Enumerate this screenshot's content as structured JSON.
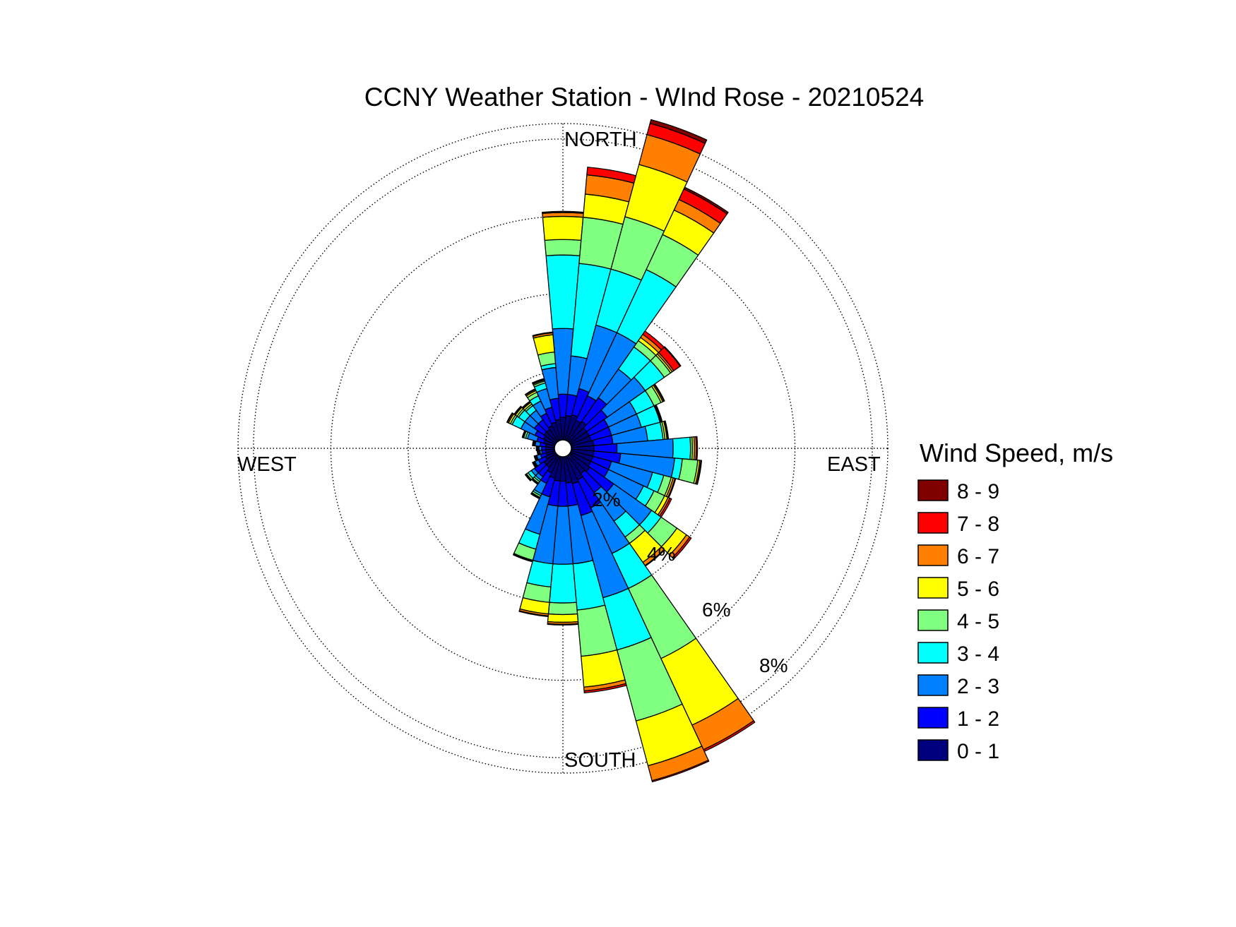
{
  "chart_data": {
    "type": "wind-rose",
    "title": "CCNY Weather Station - WInd Rose - 20210524",
    "direction_labels": {
      "north": "NORTH",
      "east": "EAST",
      "south": "SOUTH",
      "west": "WEST"
    },
    "rings": [
      {
        "value": 2,
        "label": "2%"
      },
      {
        "value": 4,
        "label": "4%"
      },
      {
        "value": 6,
        "label": "6%"
      },
      {
        "value": 8,
        "label": "8%"
      }
    ],
    "rmax": 8.4,
    "sector_width_deg": 10,
    "legend_title": "Wind Speed, m/s",
    "bins": [
      {
        "label": "0 - 1",
        "color": "#00007f"
      },
      {
        "label": "1 - 2",
        "color": "#0000ff"
      },
      {
        "label": "2 - 3",
        "color": "#0080ff"
      },
      {
        "label": "3 - 4",
        "color": "#00ffff"
      },
      {
        "label": "4 - 5",
        "color": "#80ff80"
      },
      {
        "label": "5 - 6",
        "color": "#ffff00"
      },
      {
        "label": "6 - 7",
        "color": "#ff8000"
      },
      {
        "label": "7 - 8",
        "color": "#ff0000"
      },
      {
        "label": "8 - 9",
        "color": "#800000"
      }
    ],
    "sectors": [
      {
        "dir": 0,
        "cum": [
          0.8,
          1.4,
          3.1,
          5.0,
          5.4,
          6.0,
          6.1,
          6.12,
          6.13
        ]
      },
      {
        "dir": 10,
        "cum": [
          0.85,
          1.4,
          2.4,
          4.8,
          6.0,
          6.6,
          7.1,
          7.3,
          7.3
        ]
      },
      {
        "dir": 20,
        "cum": [
          0.9,
          1.6,
          3.3,
          4.8,
          6.2,
          7.6,
          8.4,
          8.7,
          8.8
        ]
      },
      {
        "dir": 30,
        "cum": [
          0.8,
          1.5,
          3.3,
          5.1,
          6.1,
          6.8,
          7.1,
          7.4,
          7.45
        ]
      },
      {
        "dir": 40,
        "cum": [
          0.85,
          1.6,
          2.5,
          3.2,
          3.4,
          3.5,
          3.6,
          3.7,
          3.7
        ]
      },
      {
        "dir": 50,
        "cum": [
          0.75,
          1.4,
          2.6,
          3.2,
          3.4,
          3.45,
          3.5,
          3.7,
          3.72
        ]
      },
      {
        "dir": 60,
        "cum": [
          0.75,
          1.3,
          2.1,
          2.6,
          2.8,
          2.85,
          2.88,
          2.9,
          2.9
        ]
      },
      {
        "dir": 70,
        "cum": [
          0.75,
          1.3,
          2.1,
          2.6,
          2.62,
          2.64,
          2.65,
          2.66,
          2.66
        ]
      },
      {
        "dir": 80,
        "cum": [
          0.8,
          1.3,
          2.2,
          2.6,
          2.65,
          2.7,
          2.72,
          2.74,
          2.74
        ]
      },
      {
        "dir": 90,
        "cum": [
          0.8,
          1.4,
          2.85,
          3.3,
          3.35,
          3.4,
          3.45,
          3.48,
          3.48
        ]
      },
      {
        "dir": 100,
        "cum": [
          0.8,
          1.5,
          2.9,
          3.1,
          3.5,
          3.55,
          3.58,
          3.6,
          3.6
        ]
      },
      {
        "dir": 110,
        "cum": [
          0.8,
          1.3,
          2.4,
          2.7,
          2.9,
          2.95,
          3.0,
          3.02,
          3.02
        ]
      },
      {
        "dir": 120,
        "cum": [
          0.8,
          1.3,
          2.3,
          2.6,
          2.9,
          3.0,
          3.05,
          3.1,
          3.1
        ]
      },
      {
        "dir": 130,
        "cum": [
          0.85,
          1.6,
          2.8,
          3.1,
          3.6,
          3.9,
          4.0,
          4.05,
          4.05
        ]
      },
      {
        "dir": 140,
        "cum": [
          0.8,
          1.4,
          2.3,
          2.8,
          3.0,
          3.6,
          3.7,
          3.72,
          3.72
        ]
      },
      {
        "dir": 150,
        "cum": [
          0.9,
          1.7,
          3.0,
          4.0,
          6.0,
          7.9,
          8.6,
          8.65,
          8.65
        ]
      },
      {
        "dir": 160,
        "cum": [
          0.95,
          1.8,
          4.0,
          5.4,
          7.3,
          8.5,
          8.9,
          8.93,
          8.93
        ]
      },
      {
        "dir": 170,
        "cum": [
          0.9,
          1.5,
          3.0,
          4.2,
          5.4,
          6.2,
          6.3,
          6.35,
          6.35
        ]
      },
      {
        "dir": 180,
        "cum": [
          0.85,
          1.5,
          3.0,
          4.0,
          4.3,
          4.5,
          4.55,
          4.57,
          4.57
        ]
      },
      {
        "dir": 190,
        "cum": [
          0.85,
          1.5,
          3.0,
          3.6,
          4.0,
          4.3,
          4.35,
          4.37,
          4.37
        ]
      },
      {
        "dir": 200,
        "cum": [
          0.8,
          1.3,
          2.3,
          2.7,
          3.0,
          3.0,
          3.02,
          3.04,
          3.04
        ]
      },
      {
        "dir": 210,
        "cum": [
          0.7,
          1.0,
          1.3,
          1.35,
          1.4,
          1.42,
          1.43,
          1.44,
          1.44
        ]
      },
      {
        "dir": 220,
        "cum": [
          0.6,
          0.9,
          1.0,
          1.05,
          1.1,
          1.12,
          1.13,
          1.14,
          1.14
        ]
      },
      {
        "dir": 230,
        "cum": [
          0.6,
          0.9,
          1.0,
          1.1,
          1.15,
          1.17,
          1.18,
          1.19,
          1.19
        ]
      },
      {
        "dir": 240,
        "cum": [
          0.5,
          0.7,
          0.8,
          0.82,
          0.84,
          0.85,
          0.86,
          0.87,
          0.87
        ]
      },
      {
        "dir": 250,
        "cum": [
          0.45,
          0.6,
          0.7,
          0.72,
          0.74,
          0.75,
          0.76,
          0.77,
          0.77
        ]
      },
      {
        "dir": 260,
        "cum": [
          0.45,
          0.55,
          0.6,
          0.62,
          0.64,
          0.65,
          0.66,
          0.67,
          0.67
        ]
      },
      {
        "dir": 270,
        "cum": [
          0.45,
          0.55,
          0.62,
          0.64,
          0.66,
          0.67,
          0.68,
          0.69,
          0.69
        ]
      },
      {
        "dir": 280,
        "cum": [
          0.45,
          0.6,
          0.72,
          0.74,
          0.76,
          0.77,
          0.78,
          0.79,
          0.79
        ]
      },
      {
        "dir": 290,
        "cum": [
          0.5,
          0.7,
          0.95,
          1.0,
          1.05,
          1.07,
          1.08,
          1.09,
          1.09
        ]
      },
      {
        "dir": 300,
        "cum": [
          0.55,
          0.8,
          1.2,
          1.45,
          1.5,
          1.55,
          1.58,
          1.6,
          1.6
        ]
      },
      {
        "dir": 310,
        "cum": [
          0.6,
          0.9,
          1.2,
          1.4,
          1.45,
          1.5,
          1.52,
          1.54,
          1.54
        ]
      },
      {
        "dir": 320,
        "cum": [
          0.6,
          0.9,
          1.2,
          1.35,
          1.4,
          1.45,
          1.47,
          1.49,
          1.49
        ]
      },
      {
        "dir": 330,
        "cum": [
          0.65,
          1.0,
          1.35,
          1.5,
          1.6,
          1.65,
          1.68,
          1.7,
          1.7
        ]
      },
      {
        "dir": 340,
        "cum": [
          0.7,
          1.1,
          1.6,
          1.75,
          1.8,
          1.83,
          1.85,
          1.87,
          1.87
        ]
      },
      {
        "dir": 350,
        "cum": [
          0.75,
          1.3,
          2.1,
          2.2,
          2.5,
          2.95,
          3.0,
          3.02,
          3.02
        ]
      }
    ]
  }
}
